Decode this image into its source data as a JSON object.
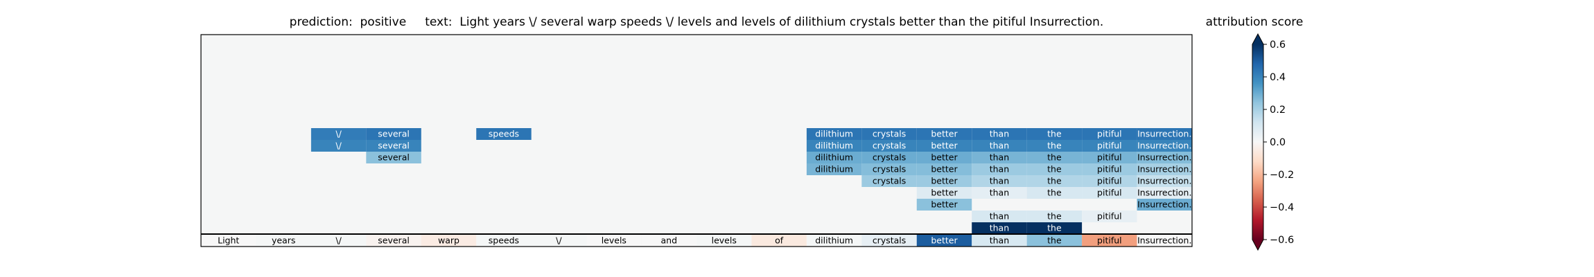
{
  "chart_data": {
    "type": "heatmap",
    "title": "prediction:  positive     text:  Light years \\/ several warp speeds \\/ levels and levels of dilithium crystals better than the pitiful Insurrection.",
    "tokens": [
      "Light",
      "years",
      "\\/",
      "several",
      "warp",
      "speeds",
      "\\/",
      "levels",
      "and",
      "levels",
      "of",
      "dilithium",
      "crystals",
      "better",
      "than",
      "the",
      "pitiful",
      "Insurrection."
    ],
    "base_row": [
      0.0,
      0.01,
      0.01,
      -0.02,
      -0.05,
      0.01,
      0.01,
      0.0,
      0.0,
      0.01,
      -0.06,
      0.01,
      0.05,
      0.5,
      0.1,
      0.25,
      -0.25,
      0.0
    ],
    "upper_rows": [
      {
        "cells": [
          {
            "token": 14,
            "value": 0.6
          },
          {
            "token": 15,
            "value": 0.6
          }
        ]
      },
      {
        "cells": [
          {
            "token": 14,
            "value": 0.1
          },
          {
            "token": 15,
            "value": 0.1
          },
          {
            "token": 16,
            "value": 0.05
          }
        ]
      },
      {
        "cells": [
          {
            "token": 13,
            "value": 0.25
          },
          {
            "token": 17,
            "value": 0.3
          }
        ]
      },
      {
        "cells": [
          {
            "token": 13,
            "value": 0.08
          },
          {
            "token": 14,
            "value": 0.06
          },
          {
            "token": 15,
            "value": 0.1
          },
          {
            "token": 16,
            "value": 0.1
          },
          {
            "token": 17,
            "value": 0.06
          }
        ]
      },
      {
        "cells": [
          {
            "token": 12,
            "value": 0.22
          },
          {
            "token": 13,
            "value": 0.22
          },
          {
            "token": 14,
            "value": 0.18
          },
          {
            "token": 15,
            "value": 0.18
          },
          {
            "token": 16,
            "value": 0.18
          },
          {
            "token": 17,
            "value": 0.14
          }
        ]
      },
      {
        "cells": [
          {
            "token": 11,
            "value": 0.28
          },
          {
            "token": 12,
            "value": 0.26
          },
          {
            "token": 13,
            "value": 0.26
          },
          {
            "token": 14,
            "value": 0.22
          },
          {
            "token": 15,
            "value": 0.22
          },
          {
            "token": 16,
            "value": 0.22
          },
          {
            "token": 17,
            "value": 0.2
          }
        ]
      },
      {
        "cells": [
          {
            "token": 3,
            "value": 0.25
          },
          {
            "token": 11,
            "value": 0.3
          },
          {
            "token": 12,
            "value": 0.3
          },
          {
            "token": 13,
            "value": 0.3
          },
          {
            "token": 14,
            "value": 0.28
          },
          {
            "token": 15,
            "value": 0.28
          },
          {
            "token": 16,
            "value": 0.28
          },
          {
            "token": 17,
            "value": 0.26
          }
        ]
      },
      {
        "cells": [
          {
            "token": 2,
            "value": 0.4
          },
          {
            "token": 3,
            "value": 0.4
          },
          {
            "token": 11,
            "value": 0.4
          },
          {
            "token": 12,
            "value": 0.4
          },
          {
            "token": 13,
            "value": 0.4
          },
          {
            "token": 14,
            "value": 0.4
          },
          {
            "token": 15,
            "value": 0.4
          },
          {
            "token": 16,
            "value": 0.4
          },
          {
            "token": 17,
            "value": 0.4
          }
        ]
      },
      {
        "cells": [
          {
            "token": 2,
            "value": 0.42
          },
          {
            "token": 3,
            "value": 0.44
          },
          {
            "token": 5,
            "value": 0.44
          },
          {
            "token": 11,
            "value": 0.44
          },
          {
            "token": 12,
            "value": 0.44
          },
          {
            "token": 13,
            "value": 0.44
          },
          {
            "token": 14,
            "value": 0.44
          },
          {
            "token": 15,
            "value": 0.44
          },
          {
            "token": 16,
            "value": 0.44
          },
          {
            "token": 17,
            "value": 0.44
          }
        ]
      }
    ],
    "colorbar": {
      "label": "attribution score",
      "vmin": -0.6,
      "vmax": 0.6,
      "ticks": [
        -0.6,
        -0.4,
        -0.2,
        0.0,
        0.2,
        0.4,
        0.6
      ],
      "tick_labels": [
        "−0.6",
        "−0.4",
        "−0.2",
        "0.0",
        "0.2",
        "0.4",
        "0.6"
      ],
      "colormap": "RdBu",
      "extend": "both"
    },
    "colors": {
      "negative_end": "#67001f",
      "neutral": "#f7f7f7",
      "positive_end": "#053061",
      "panel_background": "#f5f6f6"
    }
  }
}
